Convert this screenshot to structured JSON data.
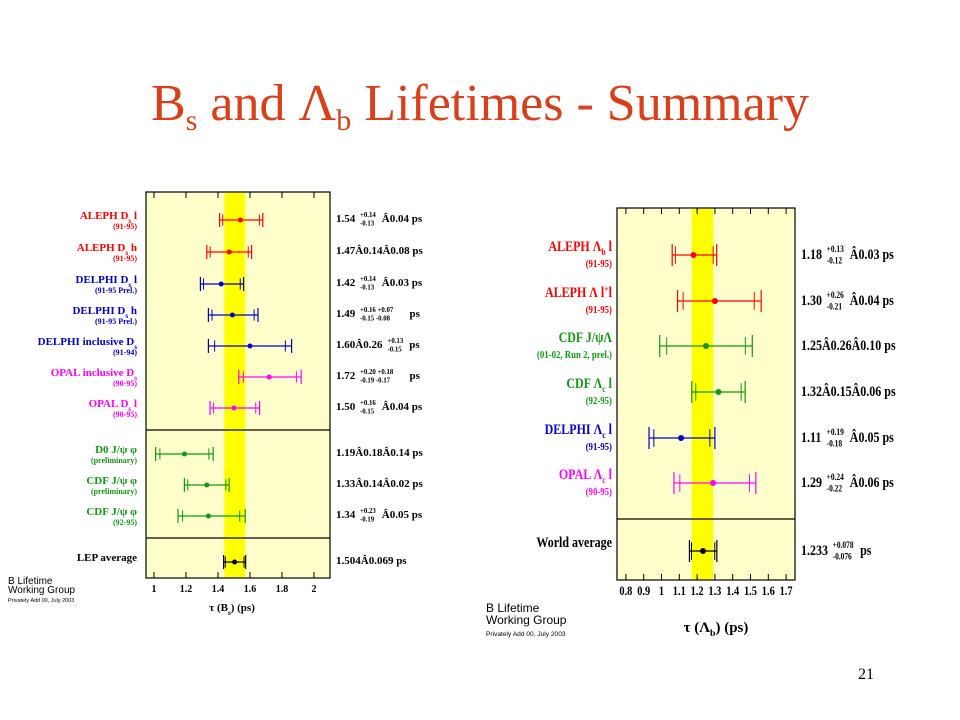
{
  "slide": {
    "title_main": "B",
    "title_sub1": "s",
    "title_and": " and Λ",
    "title_sub2": "b",
    "title_rest": " Lifetimes - Summary",
    "page_number": "21"
  },
  "colors": {
    "red": "#ff0000",
    "blue": "#0000cc",
    "magenta": "#ff00ff",
    "green": "#119911",
    "black": "#000000",
    "panel_bg": "#ffffcc",
    "band": "#ffff00"
  },
  "chart_data": [
    {
      "type": "scatter",
      "xlabel": "τ (B",
      "xlabel_sub": "s",
      "xlabel_tail": ") (ps)",
      "xlim": [
        0.95,
        2.1
      ],
      "xticks": [
        "1",
        "1.2",
        "1.4",
        "1.6",
        "1.8",
        "2"
      ],
      "band": [
        1.44,
        1.57
      ],
      "watermark": [
        "B Lifetime",
        "Working Group",
        "Privately Add 00, July 2003"
      ],
      "measurements": [
        {
          "label": "ALEPH D",
          "label_sub": "s",
          "label_tail": " l",
          "note": "(91-95)",
          "color": "red",
          "value": 1.54,
          "err_minus": 0.13,
          "err_plus": 0.14,
          "result": "1.54",
          "res_sup": "+0.14",
          "res_sub": "-0.13",
          "res_tail": " Â0.04 ps"
        },
        {
          "label": "ALEPH D",
          "label_sub": "s",
          "label_tail": " h",
          "note": "(91-95)",
          "color": "red",
          "value": 1.47,
          "err_minus": 0.14,
          "err_plus": 0.14,
          "result": "1.47Â0.14Â0.08 ps"
        },
        {
          "label": "DELPHI D",
          "label_sub": "s",
          "label_tail": " l",
          "note": "(91-95 Prel.)",
          "color": "blue",
          "value": 1.42,
          "err_minus": 0.13,
          "err_plus": 0.14,
          "result": "1.42",
          "res_sup": "+0.14",
          "res_sub": "-0.13",
          "res_tail": " Â0.03 ps"
        },
        {
          "label": "DELPHI D",
          "label_sub": "s",
          "label_tail": " h",
          "note": "(91-95 Prel.)",
          "color": "blue",
          "value": 1.49,
          "err_minus": 0.15,
          "err_plus": 0.16,
          "result": "1.49",
          "res_sup": "+0.16 +0.07",
          "res_sub": "-0.15  -0.08",
          "res_tail": " ps"
        },
        {
          "label": "DELPHI inclusive D",
          "label_sub": "s",
          "label_tail": "",
          "note": "(91-94)",
          "color": "blue",
          "value": 1.6,
          "err_minus": 0.26,
          "err_plus": 0.26,
          "result": "1.60Â0.26",
          "res_sup": "+0.13",
          "res_sub": "-0.15",
          "res_tail": " ps"
        },
        {
          "label": "OPAL inclusive D",
          "label_sub": "s",
          "label_tail": "",
          "note": "(90-95)",
          "color": "magenta",
          "value": 1.72,
          "err_minus": 0.19,
          "err_plus": 0.2,
          "result": "1.72",
          "res_sup": "+0.20 +0.18",
          "res_sub": "-0.19  -0.17",
          "res_tail": " ps"
        },
        {
          "label": "OPAL D",
          "label_sub": "s",
          "label_tail": " l",
          "note": "(90-95)",
          "color": "magenta",
          "value": 1.5,
          "err_minus": 0.15,
          "err_plus": 0.16,
          "result": "1.50",
          "res_sup": "+0.16",
          "res_sub": "-0.15",
          "res_tail": " Â0.04 ps"
        },
        {
          "label": "D0  J/ψ φ",
          "label_sub": "",
          "label_tail": "",
          "note": "(preliminary)",
          "color": "green",
          "value": 1.19,
          "err_minus": 0.18,
          "err_plus": 0.18,
          "result": "1.19Â0.18Â0.14 ps"
        },
        {
          "label": "CDF  J/ψ φ",
          "label_sub": "",
          "label_tail": "",
          "note": "(preliminary)",
          "color": "green",
          "value": 1.33,
          "err_minus": 0.14,
          "err_plus": 0.14,
          "result": "1.33Â0.14Â0.02 ps"
        },
        {
          "label": "CDF  J/ψ φ",
          "label_sub": "",
          "label_tail": "",
          "note": "(92-95)",
          "color": "green",
          "value": 1.34,
          "err_minus": 0.19,
          "err_plus": 0.23,
          "result": "1.34",
          "res_sup": "+0.23",
          "res_sub": "-0.19",
          "res_tail": " Â0.05 ps"
        },
        {
          "label": "LEP average",
          "label_sub": "",
          "label_tail": "",
          "note": "",
          "color": "black",
          "value": 1.504,
          "err_minus": 0.069,
          "err_plus": 0.069,
          "result": "1.504Â0.069 ps"
        }
      ]
    },
    {
      "type": "scatter",
      "xlabel": "τ (Λ",
      "xlabel_sub": "b",
      "xlabel_tail": ") (ps)",
      "xlim": [
        0.75,
        1.75
      ],
      "xticks": [
        "0.8",
        "0.9",
        "1",
        "1.1",
        "1.2",
        "1.3",
        "1.4",
        "1.5",
        "1.6",
        "1.7"
      ],
      "band": [
        1.17,
        1.29
      ],
      "watermark": [
        "B Lifetime",
        "Working Group",
        "Privately Add 00, July 2003"
      ],
      "measurements": [
        {
          "label": "ALEPH Λ",
          "label_sub": "b",
          "label_tail": " l",
          "note": "(91-95)",
          "color": "red",
          "value": 1.18,
          "err_minus": 0.12,
          "err_plus": 0.13,
          "result": "1.18",
          "res_sup": "+0.13",
          "res_sub": "-0.12",
          "res_tail": " Â0.03 ps"
        },
        {
          "label": "ALEPH Λ l",
          "label_sub": "",
          "label_tail": "",
          "label_sup": "+",
          "label_tail2": "l",
          "note": "(91-95)",
          "color": "red",
          "value": 1.3,
          "err_minus": 0.21,
          "err_plus": 0.26,
          "result": "1.30",
          "res_sup": "+0.26",
          "res_sub": "-0.21",
          "res_tail": " Â0.04 ps"
        },
        {
          "label": "CDF J/ψΛ",
          "label_sub": "",
          "label_tail": "",
          "note": "(01-02, Run 2, prel.)",
          "color": "green",
          "value": 1.25,
          "err_minus": 0.26,
          "err_plus": 0.26,
          "result": "1.25Â0.26Â0.10 ps"
        },
        {
          "label": "CDF   Λ",
          "label_sub": "c",
          "label_tail": " l",
          "note": "(92-95)",
          "color": "green",
          "value": 1.32,
          "err_minus": 0.15,
          "err_plus": 0.15,
          "result": "1.32Â0.15Â0.06 ps"
        },
        {
          "label": "DELPHI Λ",
          "label_sub": "c",
          "label_tail": " l",
          "note": "(91-95)",
          "color": "blue",
          "value": 1.11,
          "err_minus": 0.18,
          "err_plus": 0.19,
          "result": "1.11",
          "res_sup": "+0.19",
          "res_sub": "-0.18",
          "res_tail": " Â0.05 ps"
        },
        {
          "label": "OPAL Λ",
          "label_sub": "c",
          "label_tail": " l",
          "note": "(90-95)",
          "color": "magenta",
          "value": 1.29,
          "err_minus": 0.22,
          "err_plus": 0.24,
          "result": "1.29",
          "res_sup": "+0.24",
          "res_sub": "-0.22",
          "res_tail": " Â0.06 ps"
        },
        {
          "label": "World average",
          "label_sub": "",
          "label_tail": "",
          "note": "",
          "color": "black",
          "value": 1.233,
          "err_minus": 0.076,
          "err_plus": 0.078,
          "result": "1.233",
          "res_sup": "+0.078",
          "res_sub": "-0.076",
          "res_tail": "  ps"
        }
      ]
    }
  ]
}
